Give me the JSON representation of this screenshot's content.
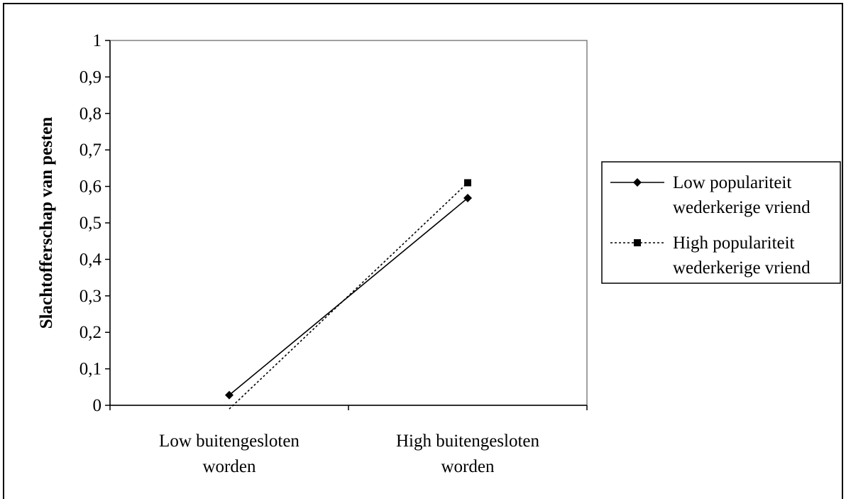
{
  "chart_data": {
    "type": "line",
    "categories": [
      "Low buitengesloten worden",
      "High buitengesloten worden"
    ],
    "category_lines": [
      [
        "Low buitengesloten",
        "worden"
      ],
      [
        "High buitengesloten",
        "worden"
      ]
    ],
    "series": [
      {
        "name": "Low populariteit wederkerige vriend",
        "name_lines": [
          "Low populariteit",
          "wederkerige vriend"
        ],
        "values": [
          0.028,
          0.568
        ],
        "marker": "diamond",
        "line_style": "solid",
        "color": "#000000"
      },
      {
        "name": "High populariteit wederkerige vriend",
        "name_lines": [
          "High populariteit",
          "wederkerige vriend"
        ],
        "values": [
          -0.01,
          0.61
        ],
        "marker": "square",
        "line_style": "dotted",
        "color": "#000000"
      }
    ],
    "ylabel": "Slachtofferschap van pesten",
    "xlabel": "",
    "ylim": [
      0,
      1
    ],
    "yticks": [
      "0",
      "0,1",
      "0,2",
      "0,3",
      "0,4",
      "0,5",
      "0,6",
      "0,7",
      "0,8",
      "0,9",
      "1"
    ],
    "grid": false,
    "legend_position": "right"
  }
}
